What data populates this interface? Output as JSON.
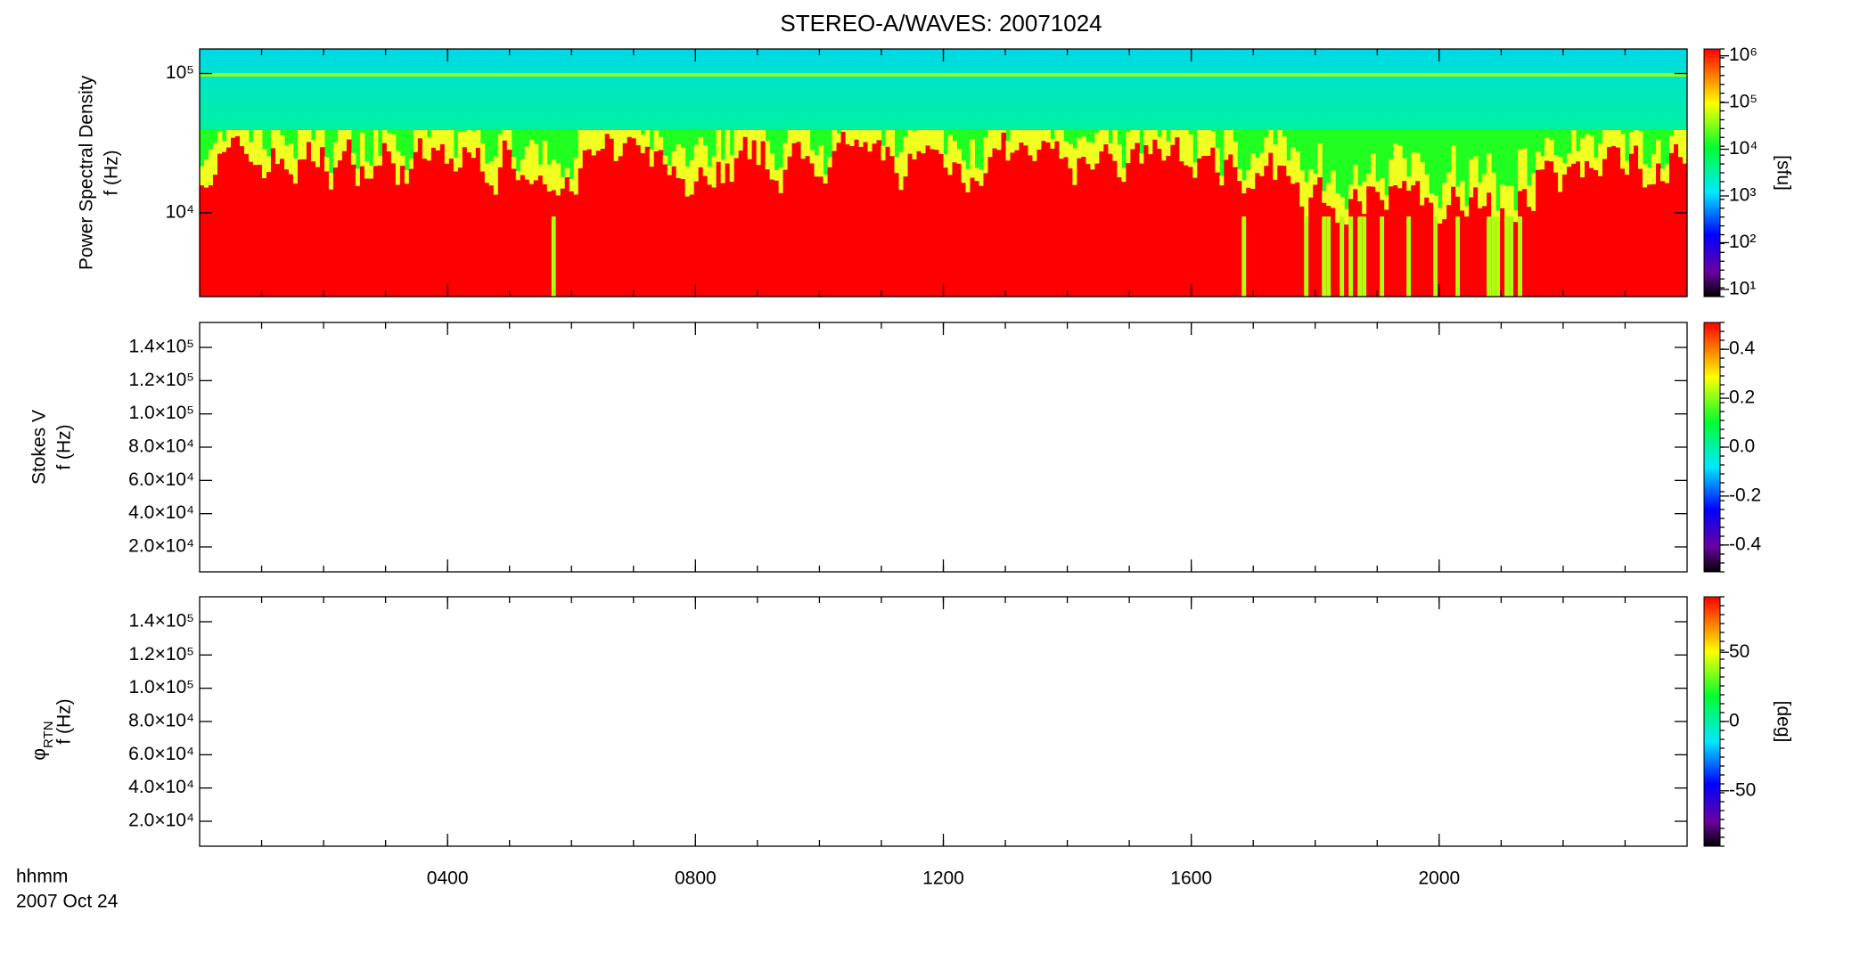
{
  "chart_data": [
    {
      "type": "spectrogram",
      "title": "STEREO-A/WAVES: 20071024",
      "ylabel": [
        "Power Spectral Density",
        "f (Hz)"
      ],
      "ylog": true,
      "ylim": [
        2500,
        150000
      ],
      "yticks": [
        {
          "value": 10000,
          "label": "10⁴"
        },
        {
          "value": 100000,
          "label": "10⁵"
        }
      ],
      "xlim": [
        0,
        24
      ],
      "colorbar": {
        "log": true,
        "lim": [
          7,
          1400000
        ],
        "label": "[sfu]",
        "ticks": [
          {
            "value": 10,
            "label": "10¹"
          },
          {
            "value": 100,
            "label": "10²"
          },
          {
            "value": 1000,
            "label": "10³"
          },
          {
            "value": 10000,
            "label": "10⁴"
          },
          {
            "value": 100000,
            "label": "10⁵"
          },
          {
            "value": 1000000,
            "label": "10⁶"
          }
        ]
      }
    },
    {
      "type": "spectrogram",
      "ylabel": [
        "Stokes V",
        "f (Hz)"
      ],
      "ylog": false,
      "ylim": [
        5000,
        155000
      ],
      "yticks": [
        {
          "value": 20000,
          "label": "2.0×10⁴"
        },
        {
          "value": 40000,
          "label": "4.0×10⁴"
        },
        {
          "value": 60000,
          "label": "6.0×10⁴"
        },
        {
          "value": 80000,
          "label": "8.0×10⁴"
        },
        {
          "value": 100000,
          "label": "1.0×10⁵"
        },
        {
          "value": 120000,
          "label": "1.2×10⁵"
        },
        {
          "value": 140000,
          "label": "1.4×10⁵"
        }
      ],
      "xlim": [
        0,
        24
      ],
      "colorbar": {
        "log": false,
        "lim": [
          -0.51,
          0.51
        ],
        "ticks": [
          -0.4,
          -0.2,
          {
            "value": 0,
            "label": "0.0"
          },
          0.2,
          0.4
        ]
      }
    },
    {
      "type": "spectrogram",
      "ylabel": [
        "φ",
        "f (Hz)"
      ],
      "ylabel_subscript": "RTN",
      "ylog": false,
      "ylim": [
        5000,
        155000
      ],
      "yticks": [
        {
          "value": 20000,
          "label": "2.0×10⁴"
        },
        {
          "value": 40000,
          "label": "4.0×10⁴"
        },
        {
          "value": 60000,
          "label": "6.0×10⁴"
        },
        {
          "value": 80000,
          "label": "8.0×10⁴"
        },
        {
          "value": 100000,
          "label": "1.0×10⁵"
        },
        {
          "value": 120000,
          "label": "1.2×10⁵"
        },
        {
          "value": 140000,
          "label": "1.4×10⁵"
        }
      ],
      "xlim": [
        0,
        24
      ],
      "xticks": [
        {
          "value": 4,
          "label": "0400"
        },
        {
          "value": 8,
          "label": "0800"
        },
        {
          "value": 12,
          "label": "1200"
        },
        {
          "value": 16,
          "label": "1600"
        },
        {
          "value": 20,
          "label": "2000"
        }
      ],
      "xlabel": [
        "hhmm",
        "2007 Oct 24"
      ],
      "colorbar": {
        "log": false,
        "lim": [
          -90,
          90
        ],
        "label": "[deg]",
        "ticks": [
          -50,
          0,
          50
        ]
      }
    }
  ]
}
